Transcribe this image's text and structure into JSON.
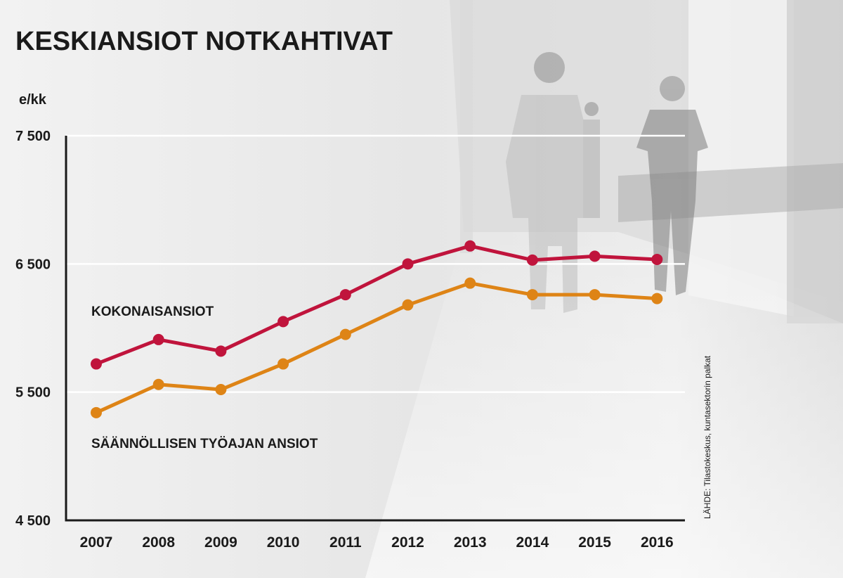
{
  "chart_data": {
    "type": "line",
    "title": "KESKIANSIOT NOTKAHTIVAT",
    "ylabel": "e/kk",
    "xlabel": "",
    "source": "LÄHDE: Tilastokeskus, kuntasektorin palkat",
    "x": [
      "2007",
      "2008",
      "2009",
      "2010",
      "2011",
      "2012",
      "2013",
      "2014",
      "2015",
      "2016"
    ],
    "ylim": [
      4500,
      7500
    ],
    "yticks": [
      4500,
      5500,
      6500,
      7500
    ],
    "ytick_labels": [
      "4 500",
      "5 500",
      "6 500",
      "7 500"
    ],
    "grid": true,
    "series": [
      {
        "name": "KOKONAISANSIOT",
        "color": "#c0143c",
        "values": [
          5720,
          5910,
          5820,
          6050,
          6260,
          6500,
          6640,
          6530,
          6560,
          6535
        ]
      },
      {
        "name": "SÄÄNNÖLLISEN TYÖAJAN ANSIOT",
        "color": "#de8416",
        "values": [
          5340,
          5560,
          5520,
          5720,
          5950,
          6180,
          6350,
          6260,
          6260,
          6230
        ]
      }
    ]
  }
}
